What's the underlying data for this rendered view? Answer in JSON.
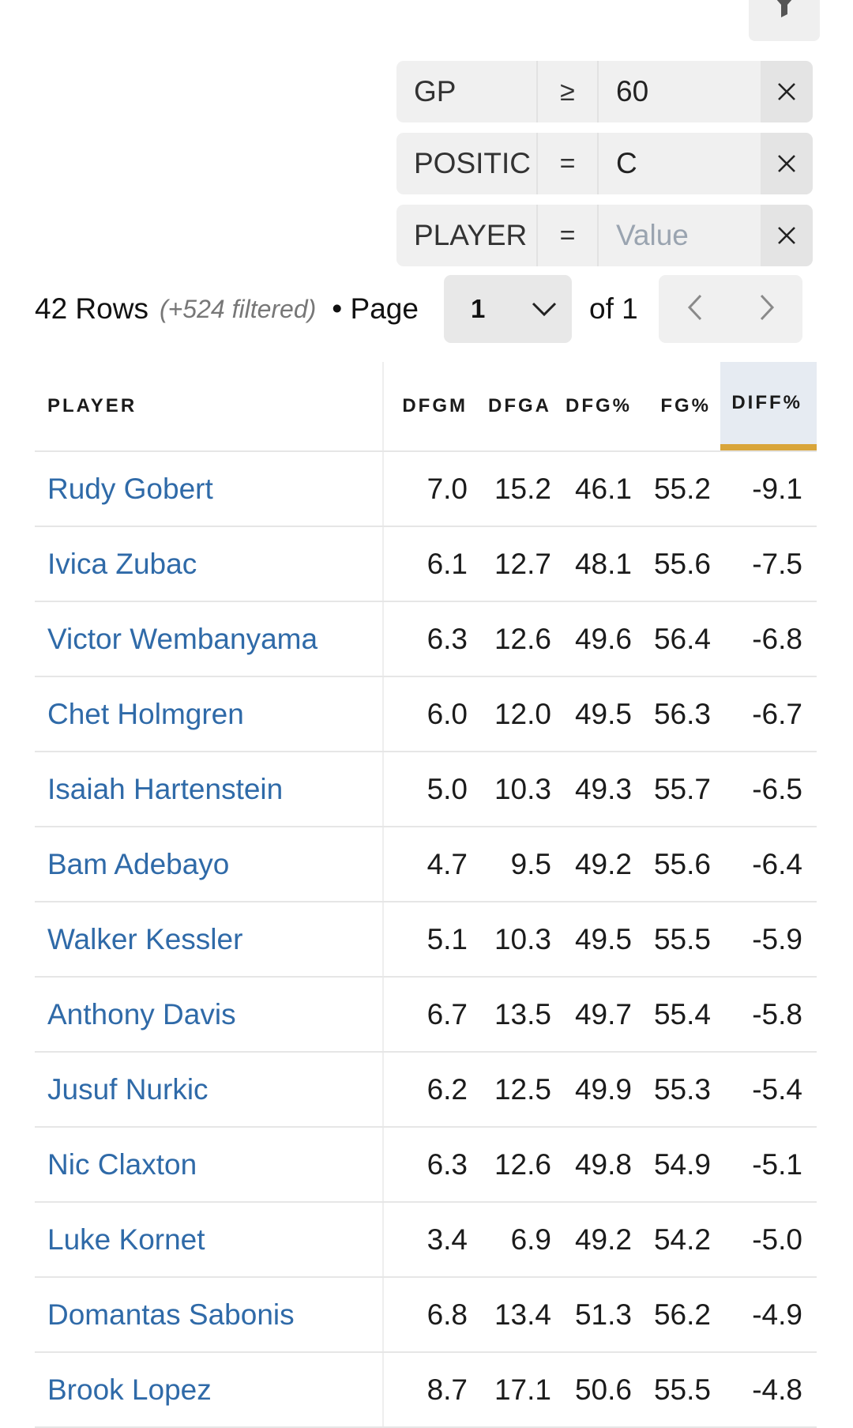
{
  "filter_button_icon": "funnel-icon",
  "filters": [
    {
      "field": "GP",
      "op": "≥",
      "value": "60",
      "placeholder": false
    },
    {
      "field": "POSITIC",
      "op": "=",
      "value": "C",
      "placeholder": false
    },
    {
      "field": "PLAYER",
      "op": "=",
      "value": "Value",
      "placeholder": true
    }
  ],
  "pager": {
    "rows": "42 Rows",
    "filtered": "(+524 filtered)",
    "page_label": "• Page",
    "page_value": "1",
    "of_label": "of 1"
  },
  "table": {
    "headers": [
      "PLAYER",
      "DFGM",
      "DFGA",
      "DFG%",
      "FG%",
      "DIFF%"
    ],
    "sorted_column": "DIFF%",
    "rows": [
      [
        "Rudy Gobert",
        "7.0",
        "15.2",
        "46.1",
        "55.2",
        "-9.1"
      ],
      [
        "Ivica Zubac",
        "6.1",
        "12.7",
        "48.1",
        "55.6",
        "-7.5"
      ],
      [
        "Victor Wembanyama",
        "6.3",
        "12.6",
        "49.6",
        "56.4",
        "-6.8"
      ],
      [
        "Chet Holmgren",
        "6.0",
        "12.0",
        "49.5",
        "56.3",
        "-6.7"
      ],
      [
        "Isaiah Hartenstein",
        "5.0",
        "10.3",
        "49.3",
        "55.7",
        "-6.5"
      ],
      [
        "Bam Adebayo",
        "4.7",
        "9.5",
        "49.2",
        "55.6",
        "-6.4"
      ],
      [
        "Walker Kessler",
        "5.1",
        "10.3",
        "49.5",
        "55.5",
        "-5.9"
      ],
      [
        "Anthony Davis",
        "6.7",
        "13.5",
        "49.7",
        "55.4",
        "-5.8"
      ],
      [
        "Jusuf Nurkic",
        "6.2",
        "12.5",
        "49.9",
        "55.3",
        "-5.4"
      ],
      [
        "Nic Claxton",
        "6.3",
        "12.6",
        "49.8",
        "54.9",
        "-5.1"
      ],
      [
        "Luke Kornet",
        "3.4",
        "6.9",
        "49.2",
        "54.2",
        "-5.0"
      ],
      [
        "Domantas Sabonis",
        "6.8",
        "13.4",
        "51.3",
        "56.2",
        "-4.9"
      ],
      [
        "Brook Lopez",
        "8.7",
        "17.1",
        "50.6",
        "55.5",
        "-4.8"
      ]
    ]
  },
  "colors": {
    "link": "#2f6aa8",
    "sort_accent": "#d9a53a",
    "sorted_header_bg": "#e6ebf2"
  }
}
